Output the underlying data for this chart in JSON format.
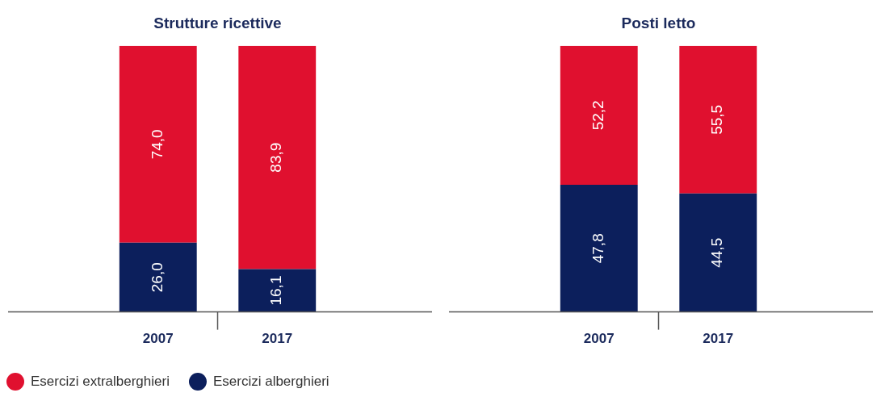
{
  "chart_data": [
    {
      "type": "bar",
      "title": "Strutture ricettive",
      "categories": [
        "2007",
        "2017"
      ],
      "stacked": true,
      "grid": false,
      "legend": "bottom left",
      "series": [
        {
          "name": "Esercizi alberghieri",
          "color": "#0c1f5c",
          "values": [
            26.0,
            16.1
          ],
          "value_labels": [
            "26,0",
            "16,1"
          ]
        },
        {
          "name": "Esercizi extralberghieri",
          "color": "#e0102f",
          "values": [
            74.0,
            83.9
          ],
          "value_labels": [
            "74,0",
            "83,9"
          ]
        }
      ]
    },
    {
      "type": "bar",
      "title": "Posti letto",
      "categories": [
        "2007",
        "2017"
      ],
      "stacked": true,
      "grid": false,
      "series": [
        {
          "color": "#0c1f5c",
          "values": [
            47.8,
            44.5
          ],
          "value_labels": [
            "47,8",
            "44,5"
          ]
        },
        {
          "color": "#e0102f",
          "values": [
            52.2,
            55.5
          ],
          "value_labels": [
            "52,2",
            "55,5"
          ]
        }
      ]
    }
  ]
}
